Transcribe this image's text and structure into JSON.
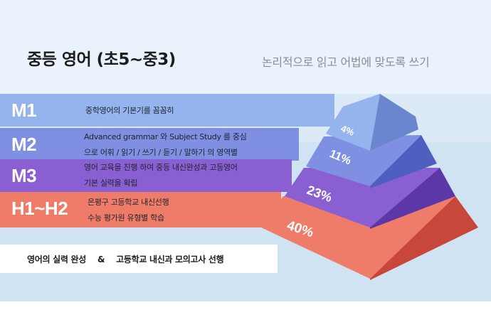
{
  "header": {
    "title": "중등 영어  (초5~중3)",
    "subtitle": "논리적으로 읽고 어법에 맞도록 쓰기"
  },
  "levels": [
    {
      "code": "M1",
      "lines": [
        "중학영어의 기본기를 꼼꼼히"
      ]
    },
    {
      "code": "M2",
      "lines": [
        "Advanced grammar 와 Subject Study 를 중심",
        "으로 어휘 / 읽기 / 쓰기 / 듣기 / 말하기 의 영역별"
      ]
    },
    {
      "code": "M3",
      "lines": [
        "영어 교육을 진행 하여 중등 내신완성과 고등영어",
        "기본 실력을 확립"
      ]
    },
    {
      "code": "H1~H2",
      "lines": [
        "은평구 고등학교 내신선행",
        "수능 평가원 유형별 학습"
      ]
    }
  ],
  "bottom": {
    "left": "영어의 실력 완성",
    "amp": "&",
    "right": "고등학교 내신과 모의고사 선행"
  },
  "pyramid": {
    "tiers": [
      {
        "label": "4%",
        "value": 4,
        "top_color": "#95b3ec",
        "side_color": "#6a86cf"
      },
      {
        "label": "11%",
        "value": 11,
        "top_color": "#7f8fe2",
        "side_color": "#4f5fc0"
      },
      {
        "label": "23%",
        "value": 23,
        "top_color": "#8a5fd2",
        "side_color": "#5c37a8"
      },
      {
        "label": "40%",
        "value": 40,
        "top_color": "#ee7c68",
        "side_color": "#c9473a"
      }
    ]
  }
}
